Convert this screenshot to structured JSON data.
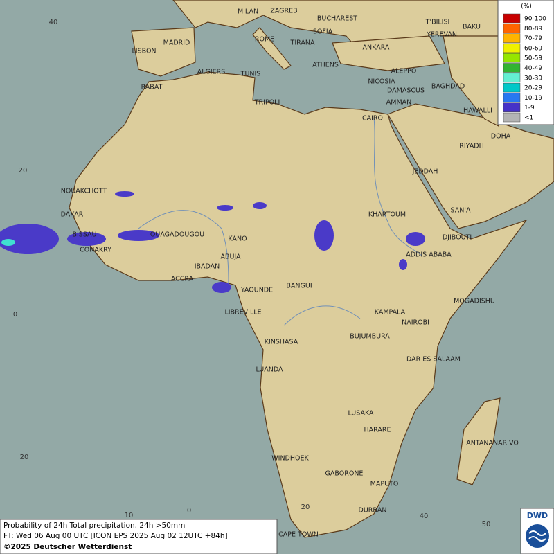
{
  "map": {
    "cities": [
      "MILAN",
      "ZAGREB",
      "BUCHAREST",
      "MADRID",
      "ROME",
      "SOFIA",
      "TIRANA",
      "ANKARA",
      "LISBON",
      "ATHENS",
      "ALGIERS",
      "TUNIS",
      "RABAT",
      "ALEPPO",
      "NICOSIA",
      "BAGHDAD",
      "TRIPOLI",
      "DAMASCUS",
      "AMMAN",
      "CAIRO",
      "HAWALLI",
      "DOHA",
      "RIYADH",
      "JEDDAH",
      "NOUAKCHOTT",
      "DAKAR",
      "SAN'A",
      "KHARTOUM",
      "BISSAU",
      "OUAGADOUGOU",
      "DJIBOUTI",
      "KANO",
      "CONAKRY",
      "ABUJA",
      "ADDIS ABABA",
      "IBADAN",
      "ACCRA",
      "BANGUI",
      "YAOUNDE",
      "MOGADISHU",
      "LIBREVILLE",
      "KAMPALA",
      "NAIROBI",
      "BUJUMBURA",
      "KINSHASA",
      "DAR ES SALAAM",
      "LUANDA",
      "LUSAKA",
      "HARARE",
      "ANTANANARIVO",
      "WINDHOEK",
      "GABORONE",
      "MAPUTO",
      "DURBAN",
      "CAPE TOWN",
      "T'BILISI",
      "YEREVAN",
      "BAKU"
    ],
    "grid_labels": [
      "40",
      "20",
      "0",
      "20",
      "10",
      "0",
      "20",
      "40",
      "50"
    ],
    "legend": {
      "title": "(%)",
      "items": [
        {
          "label": "90-100",
          "color": "#c80000"
        },
        {
          "label": "80-89",
          "color": "#ff6400"
        },
        {
          "label": "70-79",
          "color": "#ffb400"
        },
        {
          "label": "60-69",
          "color": "#f0f000"
        },
        {
          "label": "50-59",
          "color": "#96e600"
        },
        {
          "label": "40-49",
          "color": "#32b432"
        },
        {
          "label": "30-39",
          "color": "#64f0d2"
        },
        {
          "label": "20-29",
          "color": "#00c8c8"
        },
        {
          "label": "10-19",
          "color": "#2878f0"
        },
        {
          "label": "1-9",
          "color": "#4632c8"
        },
        {
          "label": "<1",
          "color": "#b4b4b4"
        }
      ]
    },
    "footer": {
      "title": "Probability of 24h Total precipitation, 24h >50mm",
      "forecast": "FT: Wed 06 Aug 00 UTC [ICON EPS 2025 Aug 02 12UTC +84h]",
      "copyright": "©2025 Deutscher Wetterdienst"
    },
    "logo": "DWD"
  }
}
